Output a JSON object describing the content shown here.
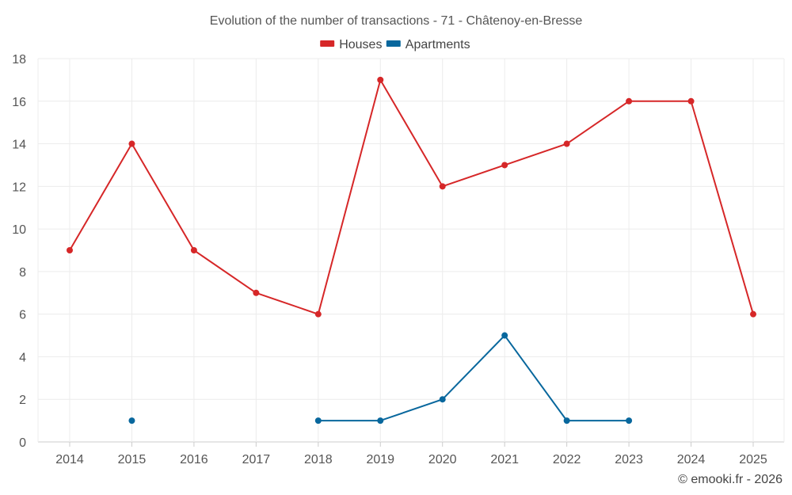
{
  "chart_data": {
    "type": "line",
    "title": "Evolution of the number of transactions - 71 - Châtenoy-en-Bresse",
    "categories": [
      "2014",
      "2015",
      "2016",
      "2017",
      "2018",
      "2019",
      "2020",
      "2021",
      "2022",
      "2023",
      "2024",
      "2025"
    ],
    "ylim": [
      0,
      18
    ],
    "yticks": [
      0,
      2,
      4,
      6,
      8,
      10,
      12,
      14,
      16,
      18
    ],
    "grid": true,
    "legend_position": "top-center",
    "series": [
      {
        "name": "Houses",
        "color": "#d62728",
        "values": [
          9,
          14,
          9,
          7,
          6,
          17,
          12,
          13,
          14,
          16,
          16,
          6
        ]
      },
      {
        "name": "Apartments",
        "color": "#08679d",
        "values": [
          null,
          1,
          null,
          null,
          1,
          1,
          2,
          5,
          1,
          1,
          null,
          null
        ]
      }
    ]
  },
  "credit": "© emooki.fr - 2026"
}
